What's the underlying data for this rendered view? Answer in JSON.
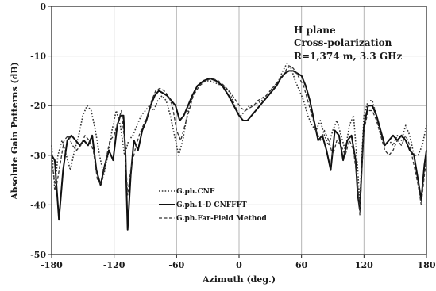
{
  "chart_data": {
    "type": "line",
    "title": "",
    "xlabel": "Azimuth (deg.)",
    "ylabel": "Absolute Gain Patterns (dB)",
    "xlim": [
      -180,
      180
    ],
    "ylim": [
      -50,
      0
    ],
    "xticks": [
      "-180",
      "-120",
      "-60",
      "0",
      "60",
      "120",
      "180"
    ],
    "yticks": [
      "0",
      "-10",
      "-20",
      "-30",
      "-40",
      "-50"
    ],
    "grid": true,
    "annotation": {
      "line1": "H plane",
      "line2": "Cross-polarization",
      "line3": "R=1,374 m, 3.3 GHz"
    },
    "legend_position": "lower-left",
    "series": [
      {
        "name": "G.ph.CNF",
        "style": "dotted",
        "points": [
          [
            -180,
            -28
          ],
          [
            -177,
            -37
          ],
          [
            -174,
            -30
          ],
          [
            -170,
            -27
          ],
          [
            -166,
            -30
          ],
          [
            -162,
            -33
          ],
          [
            -158,
            -29
          ],
          [
            -154,
            -26
          ],
          [
            -150,
            -22
          ],
          [
            -146,
            -20
          ],
          [
            -142,
            -21
          ],
          [
            -138,
            -25
          ],
          [
            -134,
            -30
          ],
          [
            -130,
            -34
          ],
          [
            -126,
            -30
          ],
          [
            -122,
            -25
          ],
          [
            -118,
            -21
          ],
          [
            -114,
            -24
          ],
          [
            -110,
            -30
          ],
          [
            -106,
            -27
          ],
          [
            -102,
            -26
          ],
          [
            -98,
            -24
          ],
          [
            -94,
            -22
          ],
          [
            -90,
            -21
          ],
          [
            -86,
            -20
          ],
          [
            -82,
            -21
          ],
          [
            -78,
            -19
          ],
          [
            -74,
            -18
          ],
          [
            -70,
            -19
          ],
          [
            -66,
            -22
          ],
          [
            -62,
            -26
          ],
          [
            -58,
            -30
          ],
          [
            -54,
            -27
          ],
          [
            -50,
            -22
          ],
          [
            -46,
            -19
          ],
          [
            -40,
            -16
          ],
          [
            -34,
            -15
          ],
          [
            -28,
            -15
          ],
          [
            -22,
            -15.5
          ],
          [
            -16,
            -16
          ],
          [
            -10,
            -17
          ],
          [
            -6,
            -19
          ],
          [
            -2,
            -21
          ],
          [
            2,
            -22
          ],
          [
            6,
            -21
          ],
          [
            10,
            -20
          ],
          [
            14,
            -20
          ],
          [
            18,
            -19.5
          ],
          [
            22,
            -19
          ],
          [
            26,
            -18
          ],
          [
            30,
            -17
          ],
          [
            34,
            -16
          ],
          [
            38,
            -15
          ],
          [
            42,
            -13
          ],
          [
            46,
            -11.5
          ],
          [
            50,
            -12.5
          ],
          [
            54,
            -15
          ],
          [
            58,
            -17
          ],
          [
            62,
            -19
          ],
          [
            66,
            -22
          ],
          [
            70,
            -24
          ],
          [
            74,
            -25
          ],
          [
            78,
            -23
          ],
          [
            82,
            -26
          ],
          [
            86,
            -28
          ],
          [
            90,
            -25
          ],
          [
            94,
            -23
          ],
          [
            98,
            -26
          ],
          [
            102,
            -29
          ],
          [
            106,
            -24
          ],
          [
            110,
            -22
          ],
          [
            114,
            -33
          ],
          [
            116,
            -40
          ],
          [
            118,
            -30
          ],
          [
            120,
            -22
          ],
          [
            124,
            -19
          ],
          [
            128,
            -19
          ],
          [
            132,
            -22
          ],
          [
            136,
            -26
          ],
          [
            140,
            -28
          ],
          [
            144,
            -27
          ],
          [
            148,
            -28
          ],
          [
            152,
            -26
          ],
          [
            156,
            -27
          ],
          [
            160,
            -24
          ],
          [
            164,
            -26
          ],
          [
            168,
            -30
          ],
          [
            172,
            -30
          ],
          [
            176,
            -28
          ],
          [
            180,
            -24
          ]
        ]
      },
      {
        "name": "G.ph.1-D CNFFFT",
        "style": "solid",
        "points": [
          [
            -180,
            -30
          ],
          [
            -177,
            -31
          ],
          [
            -173,
            -43
          ],
          [
            -169,
            -33
          ],
          [
            -165,
            -27
          ],
          [
            -161,
            -26
          ],
          [
            -157,
            -27
          ],
          [
            -153,
            -28
          ],
          [
            -149,
            -27
          ],
          [
            -145,
            -28
          ],
          [
            -141,
            -26
          ],
          [
            -137,
            -33
          ],
          [
            -133,
            -36
          ],
          [
            -129,
            -32
          ],
          [
            -125,
            -29
          ],
          [
            -121,
            -31
          ],
          [
            -117,
            -24
          ],
          [
            -114,
            -22
          ],
          [
            -111,
            -22
          ],
          [
            -109,
            -30
          ],
          [
            -107,
            -45
          ],
          [
            -104,
            -34
          ],
          [
            -101,
            -27
          ],
          [
            -97,
            -29
          ],
          [
            -93,
            -25
          ],
          [
            -89,
            -23
          ],
          [
            -85,
            -20
          ],
          [
            -81,
            -18
          ],
          [
            -77,
            -17
          ],
          [
            -73,
            -17.5
          ],
          [
            -69,
            -18
          ],
          [
            -65,
            -19
          ],
          [
            -61,
            -20
          ],
          [
            -57,
            -23
          ],
          [
            -53,
            -22
          ],
          [
            -49,
            -20
          ],
          [
            -45,
            -18
          ],
          [
            -40,
            -16
          ],
          [
            -34,
            -15
          ],
          [
            -28,
            -14.5
          ],
          [
            -22,
            -15
          ],
          [
            -16,
            -16
          ],
          [
            -10,
            -18
          ],
          [
            -5,
            -20
          ],
          [
            0,
            -22
          ],
          [
            4,
            -23
          ],
          [
            8,
            -23
          ],
          [
            12,
            -22
          ],
          [
            16,
            -21
          ],
          [
            20,
            -20
          ],
          [
            24,
            -19
          ],
          [
            28,
            -18
          ],
          [
            32,
            -17
          ],
          [
            36,
            -16
          ],
          [
            40,
            -14.5
          ],
          [
            44,
            -13.5
          ],
          [
            48,
            -13
          ],
          [
            52,
            -13
          ],
          [
            56,
            -13.5
          ],
          [
            60,
            -14
          ],
          [
            64,
            -16
          ],
          [
            68,
            -19
          ],
          [
            72,
            -23
          ],
          [
            76,
            -27
          ],
          [
            80,
            -26
          ],
          [
            84,
            -29
          ],
          [
            88,
            -33
          ],
          [
            92,
            -25
          ],
          [
            96,
            -26
          ],
          [
            100,
            -31
          ],
          [
            104,
            -27
          ],
          [
            108,
            -26
          ],
          [
            112,
            -31
          ],
          [
            114,
            -38
          ],
          [
            116,
            -41
          ],
          [
            118,
            -32
          ],
          [
            120,
            -24
          ],
          [
            124,
            -20
          ],
          [
            128,
            -20
          ],
          [
            132,
            -22
          ],
          [
            136,
            -25
          ],
          [
            140,
            -28
          ],
          [
            144,
            -27
          ],
          [
            148,
            -26
          ],
          [
            152,
            -27
          ],
          [
            156,
            -26
          ],
          [
            160,
            -27
          ],
          [
            164,
            -29
          ],
          [
            168,
            -30
          ],
          [
            172,
            -35
          ],
          [
            175,
            -39
          ],
          [
            178,
            -32
          ],
          [
            180,
            -29
          ]
        ]
      },
      {
        "name": "G.ph.Far-Field Method",
        "style": "dashed",
        "points": [
          [
            -180,
            -31
          ],
          [
            -176,
            -37
          ],
          [
            -172,
            -32
          ],
          [
            -168,
            -27
          ],
          [
            -164,
            -26
          ],
          [
            -160,
            -28
          ],
          [
            -156,
            -29
          ],
          [
            -152,
            -28
          ],
          [
            -148,
            -26
          ],
          [
            -144,
            -27
          ],
          [
            -140,
            -29
          ],
          [
            -136,
            -35
          ],
          [
            -132,
            -36
          ],
          [
            -128,
            -31
          ],
          [
            -124,
            -27
          ],
          [
            -120,
            -26
          ],
          [
            -116,
            -23
          ],
          [
            -113,
            -21
          ],
          [
            -110,
            -27
          ],
          [
            -107,
            -38
          ],
          [
            -104,
            -33
          ],
          [
            -100,
            -29
          ],
          [
            -96,
            -26
          ],
          [
            -92,
            -24
          ],
          [
            -88,
            -22
          ],
          [
            -84,
            -19
          ],
          [
            -80,
            -17
          ],
          [
            -76,
            -16.5
          ],
          [
            -72,
            -17
          ],
          [
            -68,
            -18
          ],
          [
            -64,
            -20
          ],
          [
            -60,
            -25
          ],
          [
            -56,
            -27
          ],
          [
            -52,
            -24
          ],
          [
            -48,
            -21
          ],
          [
            -44,
            -18
          ],
          [
            -38,
            -16
          ],
          [
            -32,
            -15
          ],
          [
            -26,
            -14.5
          ],
          [
            -20,
            -15
          ],
          [
            -14,
            -16
          ],
          [
            -8,
            -17.5
          ],
          [
            -3,
            -19
          ],
          [
            2,
            -20.5
          ],
          [
            6,
            -21
          ],
          [
            10,
            -20.5
          ],
          [
            14,
            -20
          ],
          [
            18,
            -19
          ],
          [
            22,
            -18.5
          ],
          [
            26,
            -18
          ],
          [
            30,
            -17
          ],
          [
            34,
            -16
          ],
          [
            38,
            -15
          ],
          [
            42,
            -14
          ],
          [
            46,
            -12.5
          ],
          [
            50,
            -12
          ],
          [
            54,
            -13
          ],
          [
            58,
            -14.5
          ],
          [
            62,
            -16
          ],
          [
            66,
            -19
          ],
          [
            70,
            -22
          ],
          [
            74,
            -25
          ],
          [
            78,
            -27
          ],
          [
            82,
            -25
          ],
          [
            86,
            -27
          ],
          [
            90,
            -30
          ],
          [
            94,
            -27
          ],
          [
            98,
            -28
          ],
          [
            102,
            -30
          ],
          [
            106,
            -27
          ],
          [
            110,
            -29
          ],
          [
            114,
            -36
          ],
          [
            116,
            -42
          ],
          [
            118,
            -33
          ],
          [
            120,
            -25
          ],
          [
            124,
            -21
          ],
          [
            128,
            -21
          ],
          [
            132,
            -23
          ],
          [
            136,
            -26
          ],
          [
            140,
            -29
          ],
          [
            144,
            -30
          ],
          [
            148,
            -29
          ],
          [
            152,
            -27
          ],
          [
            156,
            -28
          ],
          [
            160,
            -26
          ],
          [
            164,
            -28
          ],
          [
            168,
            -32
          ],
          [
            172,
            -36
          ],
          [
            175,
            -40
          ],
          [
            178,
            -34
          ],
          [
            180,
            -31
          ]
        ]
      }
    ]
  }
}
